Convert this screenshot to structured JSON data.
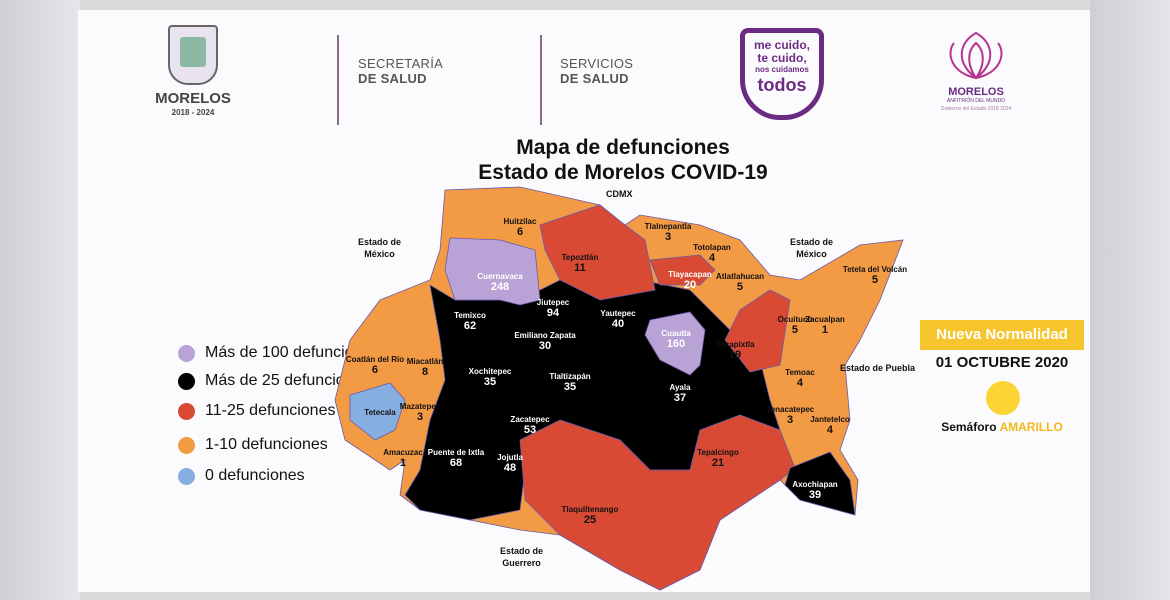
{
  "header": {
    "morelos_logo": {
      "name": "MORELOS",
      "years": "2018 - 2024"
    },
    "secretaria": [
      "SECRETARÍA",
      "DE SALUD"
    ],
    "servicios": [
      "SERVICIOS",
      "DE SALUD"
    ],
    "campaign": [
      "me cuido,",
      "te cuido,",
      "nos cuidamos",
      "todos"
    ],
    "anfitrion_logo": {
      "name": "MORELOS",
      "tagline": "ANFITRIÓN DEL MUNDO",
      "sub": "Gobierno del Estado 2018 2024"
    }
  },
  "title": [
    "Mapa de defunciones",
    "Estado de Morelos COVID-19"
  ],
  "legend": [
    {
      "label": "Más de 100 defunciones",
      "color": "#b9a3d6"
    },
    {
      "label": "Más de 25 defunciones",
      "color": "#000000"
    },
    {
      "label": "11-25 defunciones",
      "color": "#d94a35"
    },
    {
      "label": "1-10 defunciones",
      "color": "#f39a45"
    },
    {
      "label": "0 defunciones",
      "color": "#86aee0"
    }
  ],
  "neighbors": {
    "north": "CDMX",
    "west": [
      "Estado de",
      "México"
    ],
    "northeast": [
      "Estado de",
      "México"
    ],
    "east": "Estado de Puebla",
    "south": [
      "Estado de",
      "Guerrero"
    ]
  },
  "municipalities": [
    {
      "name": "Huitzilac",
      "deaths": "6"
    },
    {
      "name": "Cuernavaca",
      "deaths": "248"
    },
    {
      "name": "Tepoztlán",
      "deaths": "11"
    },
    {
      "name": "Tlalnepantla",
      "deaths": "3"
    },
    {
      "name": "Totolapan",
      "deaths": "4"
    },
    {
      "name": "Tlayacapan",
      "deaths": "20"
    },
    {
      "name": "Atlatlahucan",
      "deaths": "5"
    },
    {
      "name": "Tetela del Volcán",
      "deaths": "5"
    },
    {
      "name": "Temixco",
      "deaths": "62"
    },
    {
      "name": "Jiutepec",
      "deaths": "94"
    },
    {
      "name": "Yautepec",
      "deaths": "40"
    },
    {
      "name": "Cuautla",
      "deaths": "160"
    },
    {
      "name": "Yecapixtla",
      "deaths": "19"
    },
    {
      "name": "Ocuituco",
      "deaths": "5"
    },
    {
      "name": "Zacualpan",
      "deaths": "1"
    },
    {
      "name": "Emiliano Zapata",
      "deaths": "30"
    },
    {
      "name": "Coatlán del Río",
      "deaths": "6"
    },
    {
      "name": "Miacatlán",
      "deaths": "8"
    },
    {
      "name": "Xochitepec",
      "deaths": "35"
    },
    {
      "name": "Tlaltizapán",
      "deaths": "35"
    },
    {
      "name": "Temoac",
      "deaths": "4"
    },
    {
      "name": "Ayala",
      "deaths": "37"
    },
    {
      "name": "Tetecala",
      "deaths": ""
    },
    {
      "name": "Mazatepec",
      "deaths": "3"
    },
    {
      "name": "Puente de Ixtla",
      "deaths": "68"
    },
    {
      "name": "Zacatepec",
      "deaths": "53"
    },
    {
      "name": "Jonacatepec",
      "deaths": "3"
    },
    {
      "name": "Jantetelco",
      "deaths": "4"
    },
    {
      "name": "Amacuzac",
      "deaths": "1"
    },
    {
      "name": "Jojutla",
      "deaths": "48"
    },
    {
      "name": "Tepalcingo",
      "deaths": "21"
    },
    {
      "name": "Tlaquiltenango",
      "deaths": "25"
    },
    {
      "name": "Axochiapan",
      "deaths": "39"
    }
  ],
  "status": {
    "phase": "Nueva Normalidad",
    "date": "01 OCTUBRE 2020",
    "semaforo_label": "Semáforo",
    "semaforo_value": "AMARILLO",
    "semaforo_color": "#fcd535"
  }
}
